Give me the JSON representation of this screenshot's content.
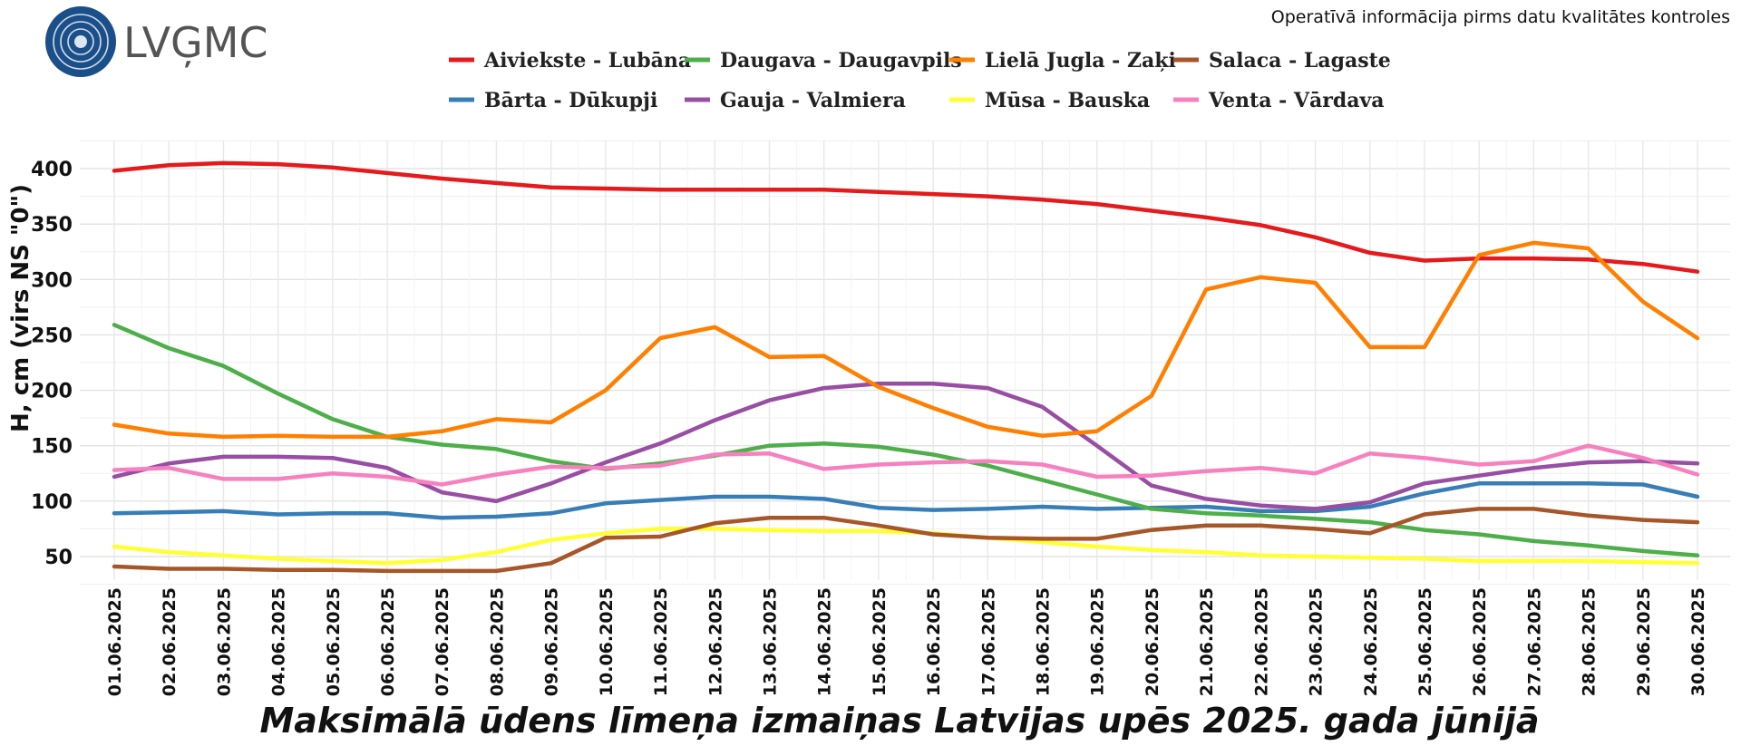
{
  "logo": {
    "text": "LVĢMC"
  },
  "note": "Operatīvā informācija pirms datu kvalitātes kontroles",
  "chart_data": {
    "type": "line",
    "title": "Maksimālā ūdens līmeņa izmaiņas Latvijas upēs 2025. gada jūnijā",
    "xlabel": "",
    "ylabel": "H, cm (virs NS \"0\")",
    "ylim": [
      25,
      425
    ],
    "yticks": [
      50,
      100,
      150,
      200,
      250,
      300,
      350,
      400
    ],
    "grid": true,
    "legend_position": "top",
    "x": [
      "01.06.2025",
      "02.06.2025",
      "03.06.2025",
      "04.06.2025",
      "05.06.2025",
      "06.06.2025",
      "07.06.2025",
      "08.06.2025",
      "09.06.2025",
      "10.06.2025",
      "11.06.2025",
      "12.06.2025",
      "13.06.2025",
      "14.06.2025",
      "15.06.2025",
      "16.06.2025",
      "17.06.2025",
      "18.06.2025",
      "19.06.2025",
      "20.06.2025",
      "21.06.2025",
      "22.06.2025",
      "23.06.2025",
      "24.06.2025",
      "25.06.2025",
      "26.06.2025",
      "27.06.2025",
      "28.06.2025",
      "29.06.2025",
      "30.06.2025"
    ],
    "series": [
      {
        "name": "Aiviekste - Lubāna",
        "color": "#e41a1c",
        "values": [
          398,
          403,
          405,
          404,
          401,
          396,
          391,
          387,
          383,
          382,
          381,
          381,
          381,
          381,
          379,
          377,
          375,
          372,
          368,
          362,
          356,
          349,
          338,
          324,
          317,
          319,
          319,
          318,
          314,
          307
        ]
      },
      {
        "name": "Bārta - Dūkupji",
        "color": "#377eb8",
        "values": [
          89,
          90,
          91,
          88,
          89,
          89,
          85,
          86,
          89,
          98,
          101,
          104,
          104,
          102,
          94,
          92,
          93,
          95,
          93,
          94,
          95,
          91,
          91,
          95,
          107,
          116,
          116,
          116,
          115,
          104
        ]
      },
      {
        "name": "Daugava - Daugavpils",
        "color": "#4daf4a",
        "values": [
          259,
          238,
          222,
          197,
          174,
          158,
          151,
          147,
          136,
          129,
          134,
          141,
          150,
          152,
          149,
          142,
          132,
          119,
          106,
          93,
          89,
          87,
          84,
          81,
          74,
          70,
          64,
          60,
          55,
          51
        ]
      },
      {
        "name": "Gauja - Valmiera",
        "color": "#984ea3",
        "values": [
          122,
          134,
          140,
          140,
          139,
          130,
          108,
          100,
          116,
          135,
          152,
          173,
          191,
          202,
          206,
          206,
          202,
          185,
          150,
          114,
          102,
          96,
          93,
          99,
          116,
          123,
          130,
          135,
          136,
          134
        ]
      },
      {
        "name": "Lielā Jugla - Zaķi",
        "color": "#ff7f00",
        "values": [
          169,
          161,
          158,
          159,
          158,
          158,
          163,
          174,
          171,
          200,
          247,
          257,
          230,
          231,
          203,
          184,
          167,
          159,
          163,
          195,
          291,
          302,
          297,
          239,
          239,
          322,
          333,
          328,
          280,
          247
        ]
      },
      {
        "name": "Mūsa - Bauska",
        "color": "#ffff33",
        "values": [
          59,
          54,
          51,
          48,
          46,
          44,
          47,
          54,
          65,
          71,
          75,
          75,
          74,
          73,
          73,
          71,
          67,
          63,
          59,
          56,
          54,
          51,
          50,
          49,
          48,
          46,
          46,
          46,
          45,
          44
        ]
      },
      {
        "name": "Salaca - Lagaste",
        "color": "#a65628",
        "values": [
          41,
          39,
          39,
          38,
          38,
          37,
          37,
          37,
          44,
          67,
          68,
          80,
          85,
          85,
          78,
          70,
          67,
          66,
          66,
          74,
          78,
          78,
          75,
          71,
          88,
          93,
          93,
          87,
          83,
          81
        ]
      },
      {
        "name": "Venta - Vārdava",
        "color": "#f781bf",
        "values": [
          128,
          130,
          120,
          120,
          125,
          122,
          115,
          124,
          131,
          130,
          132,
          142,
          143,
          129,
          133,
          135,
          136,
          133,
          122,
          123,
          127,
          130,
          125,
          143,
          139,
          133,
          136,
          150,
          139,
          124
        ]
      }
    ]
  }
}
